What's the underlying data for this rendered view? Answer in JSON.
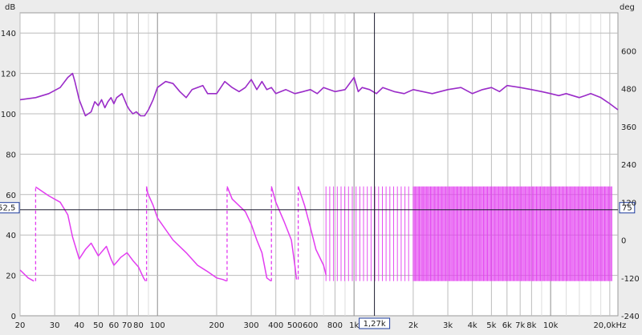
{
  "chart_data": [
    {
      "type": "line",
      "title": "",
      "xlabel": "",
      "x_scale": "log",
      "xlim": [
        20,
        22000
      ],
      "ylim_left": [
        0,
        150
      ],
      "ylim_right": [
        -240,
        720
      ],
      "ylabel_left": "dB",
      "ylabel_right": "deg",
      "x_tick_labels": [
        "20",
        "30",
        "40",
        "50",
        "60",
        "70",
        "80",
        "100",
        "200",
        "300",
        "400",
        "500",
        "600",
        "800",
        "1k",
        "2k",
        "3k",
        "4k",
        "5k",
        "6k",
        "7k",
        "8k",
        "10k",
        "20,0kHz"
      ],
      "x_tick_values": [
        20,
        30,
        40,
        50,
        60,
        70,
        80,
        100,
        200,
        300,
        400,
        500,
        600,
        800,
        1000,
        2000,
        3000,
        4000,
        5000,
        6000,
        7000,
        8000,
        10000,
        20000
      ],
      "y_left_ticks": [
        "0",
        "20",
        "40",
        "60",
        "80",
        "100",
        "120",
        "140"
      ],
      "y_left_values": [
        0,
        20,
        40,
        60,
        80,
        100,
        120,
        140
      ],
      "y_right_ticks": [
        "-240",
        "-120",
        "0",
        "120",
        "240",
        "360",
        "480",
        "600"
      ],
      "y_right_values": [
        -240,
        -120,
        0,
        120,
        240,
        360,
        480,
        600
      ],
      "grid": true,
      "series": [
        {
          "axis": "left",
          "color": "#9a2bc8",
          "x": [
            20,
            24,
            28,
            32,
            35,
            37,
            38,
            40,
            43,
            46,
            48,
            50,
            52,
            54,
            56,
            58,
            60,
            62,
            64,
            66,
            68,
            70,
            72,
            75,
            78,
            82,
            86,
            90,
            95,
            100,
            110,
            120,
            130,
            140,
            150,
            170,
            180,
            200,
            220,
            240,
            260,
            280,
            300,
            320,
            340,
            360,
            380,
            400,
            450,
            500,
            550,
            600,
            650,
            700,
            800,
            900,
            1000,
            1050,
            1100,
            1200,
            1300,
            1400,
            1600,
            1800,
            2000,
            2500,
            3000,
            3500,
            4000,
            4500,
            5000,
            5500,
            6000,
            7000,
            8000,
            9000,
            10000,
            11000,
            12000,
            14000,
            15000,
            16000,
            18000,
            20000,
            22000
          ],
          "y": [
            107,
            108,
            110,
            113,
            118,
            120,
            116,
            107,
            99,
            101,
            106,
            104,
            107,
            103,
            106,
            108,
            105,
            108,
            109,
            110,
            107,
            104,
            102,
            100,
            101,
            99,
            99,
            102,
            107,
            113,
            116,
            115,
            111,
            108,
            112,
            114,
            110,
            110,
            116,
            113,
            111,
            113,
            117,
            112,
            116,
            112,
            113,
            110,
            112,
            110,
            111,
            112,
            110,
            113,
            111,
            112,
            118,
            111,
            113,
            112,
            110,
            113,
            111,
            110,
            112,
            110,
            112,
            113,
            110,
            112,
            113,
            111,
            114,
            113,
            112,
            111,
            110,
            109,
            110,
            108,
            109,
            110,
            108,
            105,
            102
          ]
        },
        {
          "axis": "right",
          "color": "#e23cf0",
          "x": [
            20,
            22,
            23.5,
            24,
            28,
            32,
            35,
            37,
            40,
            43,
            46,
            50,
            55,
            58,
            60,
            62,
            65,
            70,
            75,
            80,
            85,
            87,
            88,
            89,
            95,
            100,
            120,
            140,
            160,
            180,
            200,
            215,
            225,
            226,
            240,
            280,
            300,
            320,
            340,
            360,
            378,
            380,
            400,
            440,
            480,
            500,
            510,
            520,
            560,
            600,
            640,
            700,
            720
          ],
          "y": [
            -95,
            -120,
            -130,
            168,
            140,
            120,
            80,
            10,
            -60,
            -30,
            -10,
            -50,
            -20,
            -60,
            -80,
            -70,
            -55,
            -40,
            -65,
            -85,
            -120,
            -130,
            170,
            150,
            110,
            70,
            0,
            -40,
            -80,
            -100,
            -120,
            -125,
            -130,
            170,
            130,
            90,
            50,
            0,
            -40,
            -120,
            -130,
            170,
            120,
            60,
            0,
            -80,
            -125,
            170,
            110,
            40,
            -30,
            -80,
            -110
          ]
        }
      ]
    }
  ],
  "cursor": {
    "x_label": "1,27k",
    "y_left_label": "52,5",
    "y_right_label": "75"
  },
  "colors": {
    "magnitude": "#9a2bc8",
    "phase": "#e23cf0",
    "grid": "#bcbcbc",
    "cursor": "#1a1a2e",
    "plot_bg": "#ffffff"
  }
}
